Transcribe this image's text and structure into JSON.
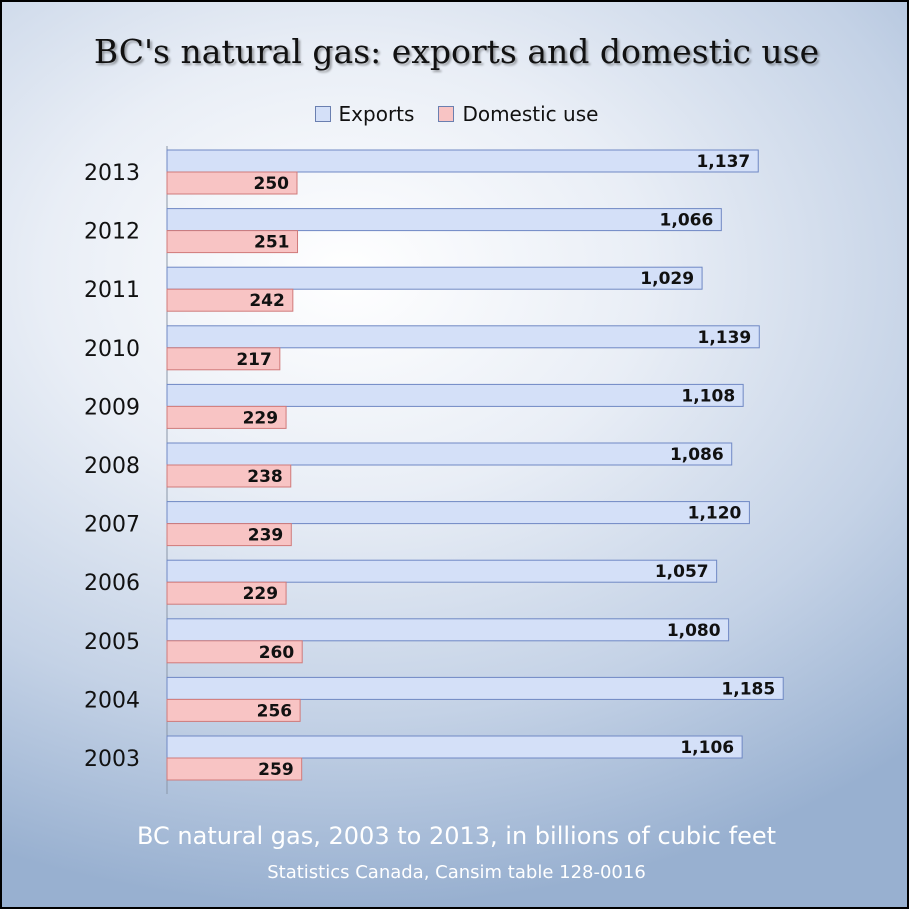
{
  "chart_data": {
    "type": "bar",
    "orientation": "horizontal",
    "title": "BC's natural gas: exports and domestic use",
    "subtitle": "BC natural gas, 2003 to 2013, in billions of cubic feet",
    "source": "Statistics Canada, Cansim table 128-0016",
    "categories": [
      "2013",
      "2012",
      "2011",
      "2010",
      "2009",
      "2008",
      "2007",
      "2006",
      "2005",
      "2004",
      "2003"
    ],
    "series": [
      {
        "name": "Exports",
        "color": "#d4e0f8",
        "values": [
          1137,
          1066,
          1029,
          1139,
          1108,
          1086,
          1120,
          1057,
          1080,
          1185,
          1106
        ],
        "labels": [
          "1,137",
          "1,066",
          "1,029",
          "1,139",
          "1,108",
          "1,086",
          "1,120",
          "1,057",
          "1,080",
          "1,185",
          "1,106"
        ]
      },
      {
        "name": "Domestic use",
        "color": "#f8c4c4",
        "values": [
          250,
          251,
          242,
          217,
          229,
          238,
          239,
          229,
          260,
          256,
          259
        ],
        "labels": [
          "250",
          "251",
          "242",
          "217",
          "229",
          "238",
          "239",
          "229",
          "260",
          "256",
          "259"
        ]
      }
    ],
    "xlim": [
      0,
      1250
    ],
    "grid": false,
    "legend_position": "top"
  }
}
